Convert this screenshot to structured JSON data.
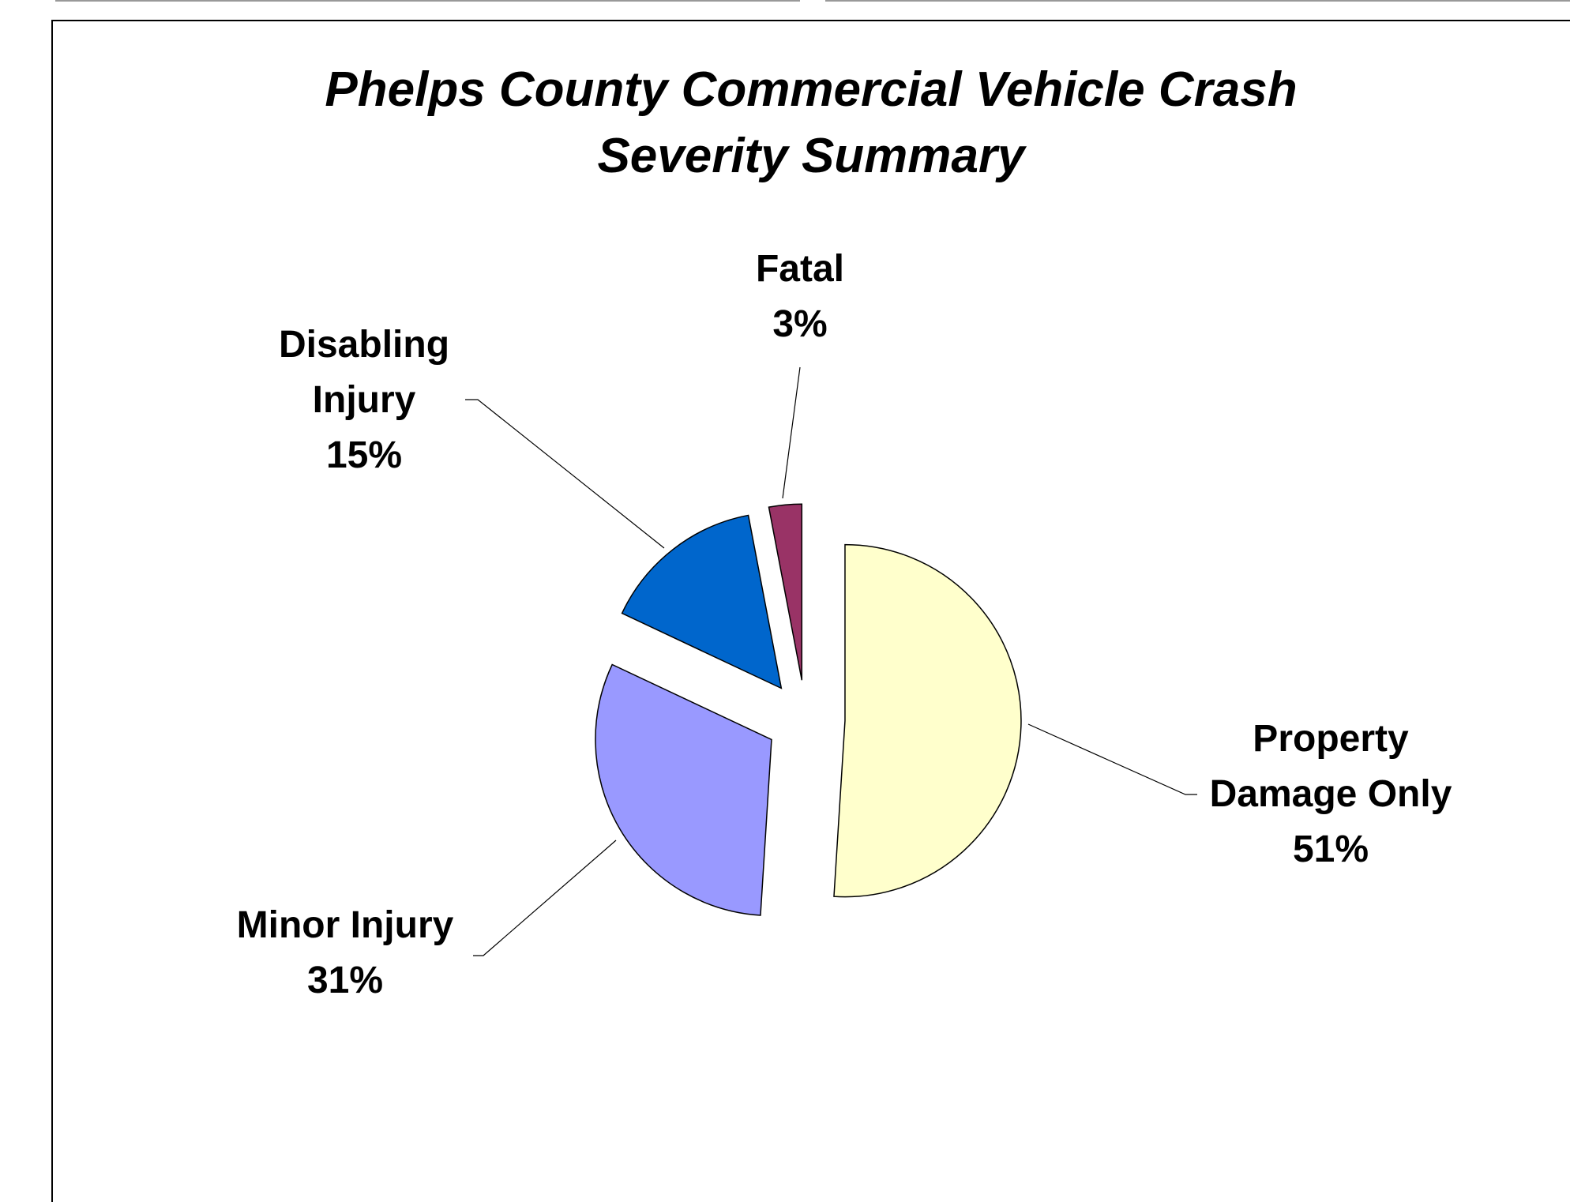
{
  "chart_data": {
    "type": "pie",
    "title": "Phelps County Commercial Vehicle Crash Severity Summary",
    "categories": [
      "Property Damage Only",
      "Minor Injury",
      "Disabling Injury",
      "Fatal"
    ],
    "values": [
      51,
      31,
      15,
      3
    ],
    "value_labels": [
      "51%",
      "31%",
      "15%",
      "3%"
    ],
    "colors": [
      "#FFFFCC",
      "#9999FF",
      "#0066CC",
      "#993366"
    ]
  }
}
